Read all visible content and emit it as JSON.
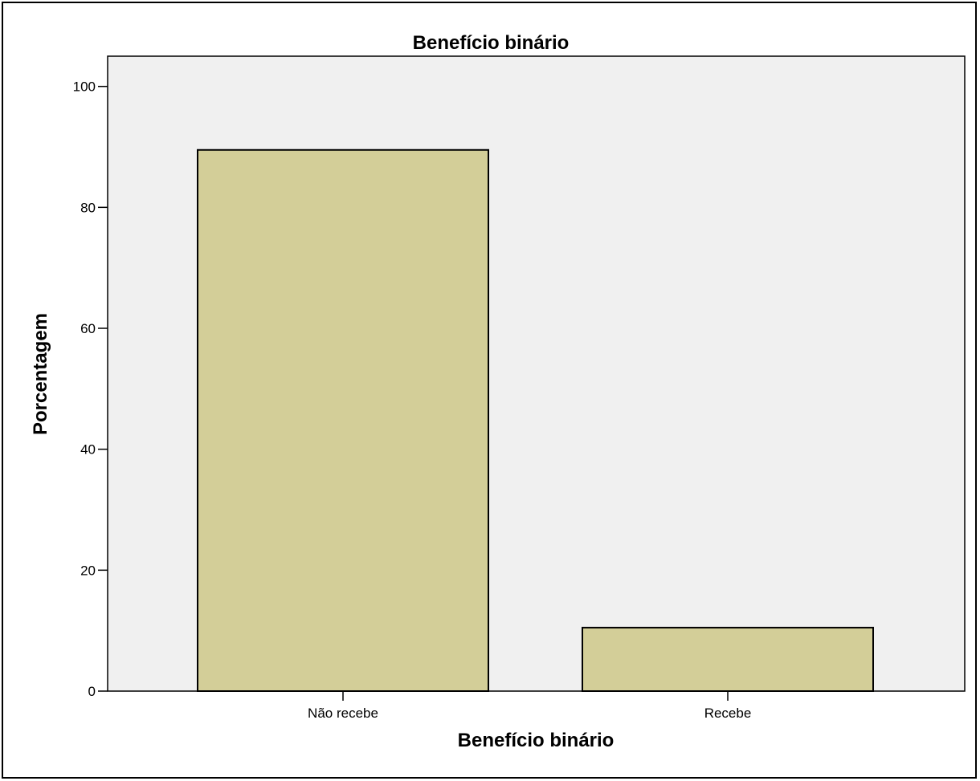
{
  "chart_data": {
    "type": "bar",
    "title": "Benefício binário",
    "xlabel": "Benefício binário",
    "ylabel": "Porcentagem",
    "categories": [
      "Não recebe",
      "Recebe"
    ],
    "values": [
      89.5,
      10.5
    ],
    "ylim": [
      0,
      105
    ],
    "yticks": [
      "0",
      "20",
      "40",
      "60",
      "80",
      "100"
    ],
    "grid": false,
    "colors": {
      "plot_background": "#f0f0f0",
      "bar_fill": "#d3ce98",
      "bar_stroke": "#000000"
    }
  }
}
